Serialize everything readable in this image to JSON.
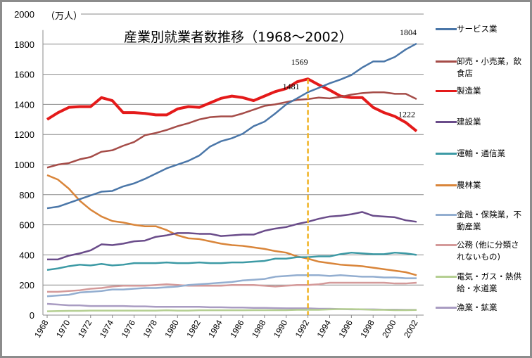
{
  "chart_data": {
    "type": "line",
    "title": "産業別就業者数推移（1968〜2002）",
    "ylabel": "（万人）",
    "ylim": [
      0,
      2000
    ],
    "yticks": [
      0,
      200,
      400,
      600,
      800,
      1000,
      1200,
      1400,
      1600,
      1800,
      2000
    ],
    "xticks": [
      1968,
      1970,
      1972,
      1974,
      1976,
      1978,
      1980,
      1982,
      1984,
      1986,
      1988,
      1990,
      1992,
      1994,
      1996,
      1998,
      2000,
      2002
    ],
    "grid": true,
    "legend": "right",
    "x": [
      1968,
      1969,
      1970,
      1971,
      1972,
      1973,
      1974,
      1975,
      1976,
      1977,
      1978,
      1979,
      1980,
      1981,
      1982,
      1983,
      1984,
      1985,
      1986,
      1987,
      1988,
      1989,
      1990,
      1991,
      1992,
      1993,
      1994,
      1995,
      1996,
      1997,
      1998,
      1999,
      2000,
      2001,
      2002
    ],
    "series": [
      {
        "name": "サービス業",
        "color": "#4a76a8",
        "values": [
          710,
          720,
          745,
          770,
          795,
          820,
          825,
          855,
          875,
          905,
          940,
          975,
          1000,
          1025,
          1060,
          1120,
          1155,
          1175,
          1205,
          1255,
          1285,
          1340,
          1400,
          1440,
          1481,
          1510,
          1540,
          1565,
          1595,
          1645,
          1685,
          1685,
          1715,
          1765,
          1804
        ]
      },
      {
        "name": "卸売・小売業，飲食店",
        "color": "#a54c48",
        "values": [
          980,
          1000,
          1010,
          1035,
          1050,
          1085,
          1095,
          1125,
          1150,
          1195,
          1210,
          1230,
          1255,
          1275,
          1300,
          1315,
          1320,
          1320,
          1340,
          1365,
          1390,
          1400,
          1415,
          1430,
          1435,
          1445,
          1440,
          1450,
          1465,
          1475,
          1480,
          1480,
          1470,
          1470,
          1435
        ]
      },
      {
        "name": "製造業",
        "color": "#e41a1a",
        "values": [
          1300,
          1345,
          1380,
          1385,
          1385,
          1445,
          1425,
          1345,
          1345,
          1340,
          1330,
          1330,
          1370,
          1385,
          1380,
          1410,
          1440,
          1455,
          1445,
          1425,
          1455,
          1485,
          1505,
          1550,
          1569,
          1530,
          1495,
          1455,
          1445,
          1445,
          1380,
          1345,
          1320,
          1280,
          1222
        ]
      },
      {
        "name": "建設業",
        "color": "#6a4c8a",
        "values": [
          370,
          370,
          395,
          410,
          430,
          470,
          465,
          475,
          490,
          495,
          520,
          530,
          545,
          545,
          540,
          540,
          525,
          530,
          535,
          535,
          560,
          575,
          585,
          605,
          620,
          640,
          655,
          660,
          670,
          685,
          660,
          655,
          650,
          630,
          620
        ]
      },
      {
        "name": "運輸・通信業",
        "color": "#3d9aa5",
        "values": [
          300,
          310,
          325,
          335,
          330,
          340,
          330,
          335,
          345,
          345,
          345,
          350,
          345,
          345,
          350,
          345,
          345,
          350,
          350,
          355,
          360,
          375,
          375,
          385,
          385,
          390,
          390,
          405,
          415,
          410,
          405,
          405,
          415,
          410,
          400
        ]
      },
      {
        "name": "農林業",
        "color": "#d9853a",
        "values": [
          930,
          900,
          840,
          760,
          700,
          655,
          625,
          615,
          600,
          590,
          590,
          565,
          530,
          510,
          505,
          490,
          475,
          465,
          460,
          450,
          440,
          425,
          415,
          390,
          375,
          355,
          345,
          335,
          330,
          325,
          315,
          305,
          295,
          285,
          265
        ]
      },
      {
        "name": "金融・保険業，不動産業",
        "color": "#93aed0",
        "values": [
          125,
          130,
          135,
          150,
          155,
          160,
          170,
          170,
          175,
          180,
          180,
          185,
          190,
          200,
          205,
          210,
          215,
          220,
          230,
          235,
          240,
          255,
          260,
          265,
          265,
          265,
          260,
          265,
          260,
          255,
          255,
          250,
          250,
          245,
          245
        ]
      },
      {
        "name": "公務 (他に分類されないもの)",
        "color": "#d49a9a",
        "values": [
          155,
          155,
          160,
          165,
          175,
          180,
          190,
          195,
          195,
          195,
          200,
          205,
          200,
          195,
          195,
          195,
          195,
          200,
          200,
          200,
          195,
          190,
          195,
          200,
          200,
          205,
          215,
          215,
          215,
          215,
          215,
          215,
          210,
          210,
          215
        ]
      },
      {
        "name": "電気・ガス・熱供給・水道業",
        "color": "#b5cf92",
        "values": [
          25,
          27,
          28,
          28,
          30,
          30,
          30,
          30,
          30,
          30,
          30,
          32,
          30,
          30,
          32,
          32,
          32,
          32,
          32,
          33,
          33,
          33,
          33,
          35,
          35,
          35,
          38,
          40,
          40,
          38,
          35,
          35,
          33,
          33,
          34
        ]
      },
      {
        "name": "漁業・鉱業",
        "color": "#a99cc2",
        "values": [
          75,
          70,
          65,
          65,
          60,
          60,
          60,
          60,
          58,
          58,
          55,
          55,
          55,
          55,
          55,
          52,
          52,
          50,
          50,
          48,
          48,
          46,
          45,
          45,
          45,
          42,
          42,
          40,
          38,
          38,
          38,
          36,
          36,
          35,
          35
        ]
      }
    ],
    "annotations": [
      {
        "text": "1804",
        "x": 2002,
        "y": 1804
      },
      {
        "text": "1569",
        "x": 1992,
        "y": 1569
      },
      {
        "text": "1481",
        "x": 1992,
        "y": 1481
      },
      {
        "text": "1222",
        "x": 2002,
        "y": 1222
      }
    ],
    "marker_line": {
      "x": 1992,
      "color": "#f0b323"
    }
  }
}
